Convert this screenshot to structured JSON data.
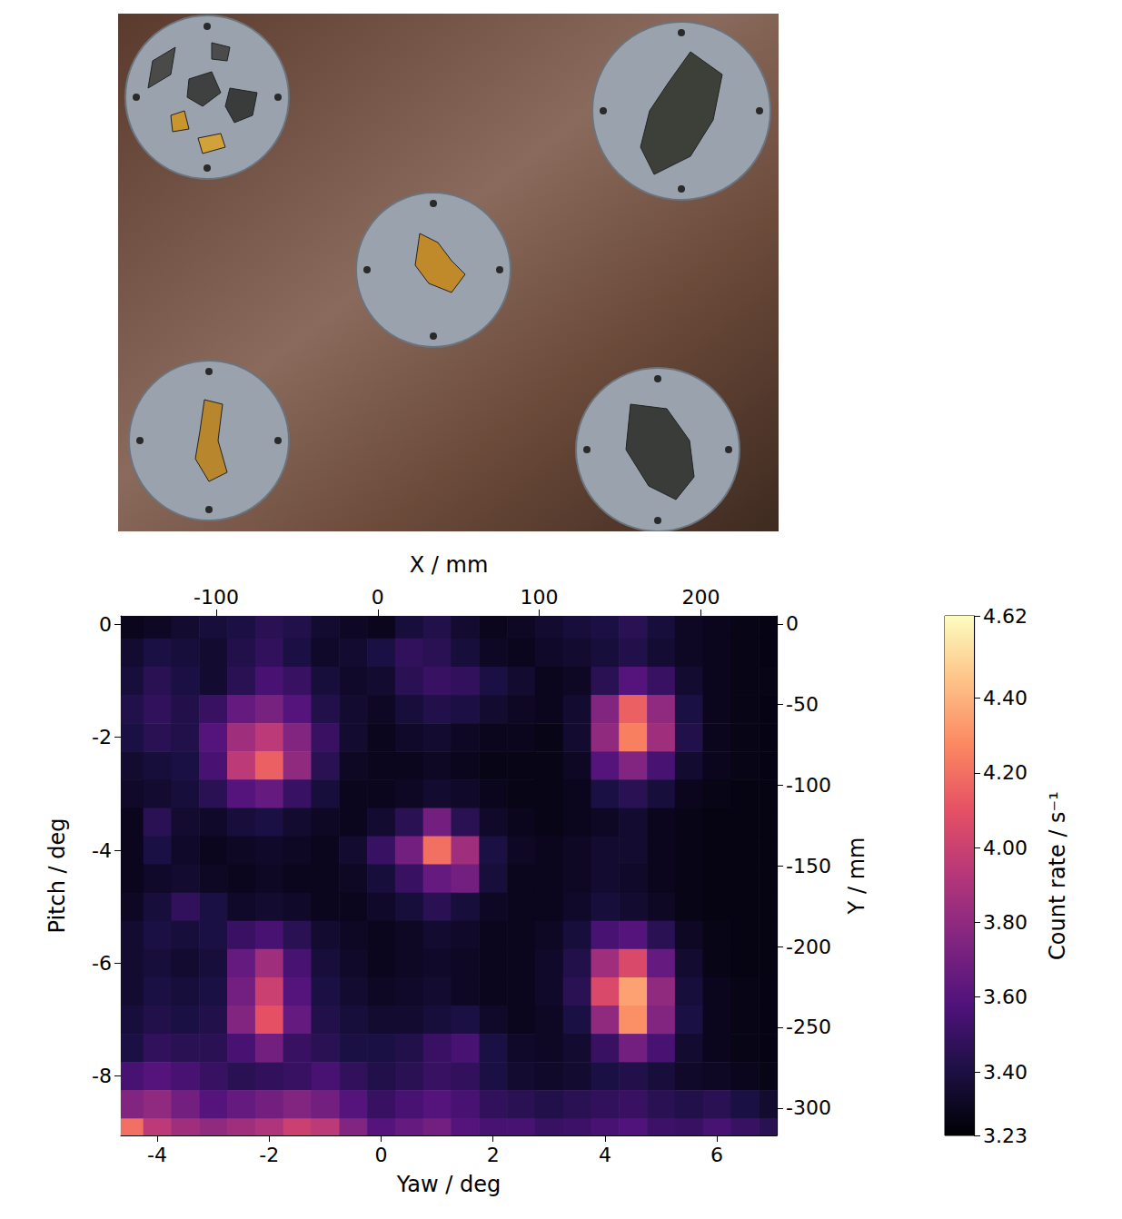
{
  "chart_data": {
    "type": "heatmap",
    "x_label": "Yaw / deg",
    "y_label": "Pitch / deg",
    "x2_label": "X / mm",
    "y2_label": "Y / mm",
    "xlim": [
      -4.65,
      7.07
    ],
    "xticks": [
      -4,
      -2,
      0,
      2,
      4,
      6
    ],
    "ylim": [
      -9.05,
      0.15
    ],
    "yticks": [
      0,
      -2,
      -4,
      -6,
      -8
    ],
    "x2lim": [
      -159,
      247
    ],
    "x2ticks": [
      -100,
      0,
      100,
      200
    ],
    "y2lim": [
      -317,
      5
    ],
    "y2ticks": [
      0,
      -50,
      -100,
      -150,
      -200,
      -250,
      -300
    ],
    "cells": {
      "yaw_edges": [
        -4.75,
        -4.25,
        -3.75,
        -3.25,
        -2.75,
        -2.25,
        -1.75,
        -1.25,
        -0.75,
        -0.25,
        0.25,
        0.75,
        1.25,
        1.75,
        2.25,
        2.75,
        3.25,
        3.75,
        4.25,
        4.75,
        5.25,
        5.75,
        6.25,
        6.75,
        7.25
      ],
      "pitch_edges": [
        0.25,
        -0.25,
        -0.75,
        -1.25,
        -1.75,
        -2.25,
        -2.75,
        -3.25,
        -3.75,
        -4.25,
        -4.75,
        -5.25,
        -5.75,
        -6.25,
        -6.75,
        -7.25,
        -7.75,
        -8.25,
        -8.75,
        -9.25
      ],
      "values": [
        [
          3.3,
          3.32,
          3.35,
          3.38,
          3.4,
          3.45,
          3.42,
          3.35,
          3.32,
          3.3,
          3.38,
          3.42,
          3.35,
          3.3,
          3.32,
          3.35,
          3.38,
          3.4,
          3.45,
          3.38,
          3.32,
          3.3,
          3.28,
          3.27
        ],
        [
          3.35,
          3.4,
          3.38,
          3.35,
          3.42,
          3.48,
          3.4,
          3.33,
          3.35,
          3.4,
          3.48,
          3.45,
          3.38,
          3.32,
          3.3,
          3.33,
          3.35,
          3.38,
          3.42,
          3.36,
          3.32,
          3.3,
          3.28,
          3.27
        ],
        [
          3.38,
          3.45,
          3.4,
          3.35,
          3.45,
          3.55,
          3.5,
          3.38,
          3.33,
          3.35,
          3.45,
          3.5,
          3.48,
          3.4,
          3.35,
          3.3,
          3.32,
          3.45,
          3.6,
          3.5,
          3.35,
          3.3,
          3.28,
          3.28
        ],
        [
          3.42,
          3.48,
          3.42,
          3.5,
          3.65,
          3.72,
          3.6,
          3.42,
          3.35,
          3.32,
          3.38,
          3.42,
          3.4,
          3.35,
          3.32,
          3.3,
          3.35,
          3.75,
          4.15,
          3.8,
          3.4,
          3.3,
          3.28,
          3.27
        ],
        [
          3.4,
          3.45,
          3.42,
          3.6,
          3.85,
          3.95,
          3.75,
          3.5,
          3.35,
          3.3,
          3.33,
          3.35,
          3.32,
          3.3,
          3.3,
          3.28,
          3.35,
          3.8,
          4.25,
          3.85,
          3.42,
          3.3,
          3.28,
          3.27
        ],
        [
          3.35,
          3.38,
          3.4,
          3.55,
          3.95,
          4.15,
          3.8,
          3.45,
          3.32,
          3.3,
          3.3,
          3.32,
          3.3,
          3.28,
          3.28,
          3.28,
          3.32,
          3.6,
          3.75,
          3.55,
          3.35,
          3.3,
          3.28,
          3.27
        ],
        [
          3.33,
          3.35,
          3.38,
          3.45,
          3.6,
          3.65,
          3.5,
          3.38,
          3.3,
          3.3,
          3.32,
          3.35,
          3.33,
          3.3,
          3.28,
          3.28,
          3.3,
          3.4,
          3.45,
          3.38,
          3.3,
          3.28,
          3.27,
          3.27
        ],
        [
          3.3,
          3.45,
          3.35,
          3.33,
          3.38,
          3.4,
          3.35,
          3.32,
          3.3,
          3.35,
          3.45,
          3.7,
          3.45,
          3.33,
          3.3,
          3.28,
          3.3,
          3.32,
          3.35,
          3.3,
          3.28,
          3.27,
          3.27,
          3.27
        ],
        [
          3.3,
          3.4,
          3.33,
          3.3,
          3.32,
          3.33,
          3.32,
          3.3,
          3.35,
          3.5,
          3.7,
          4.2,
          3.85,
          3.4,
          3.32,
          3.3,
          3.32,
          3.35,
          3.35,
          3.3,
          3.28,
          3.27,
          3.27,
          3.27
        ],
        [
          3.3,
          3.33,
          3.35,
          3.32,
          3.3,
          3.32,
          3.3,
          3.3,
          3.32,
          3.38,
          3.5,
          3.65,
          3.7,
          3.38,
          3.3,
          3.3,
          3.32,
          3.35,
          3.33,
          3.3,
          3.28,
          3.27,
          3.27,
          3.27
        ],
        [
          3.32,
          3.38,
          3.48,
          3.4,
          3.33,
          3.35,
          3.33,
          3.3,
          3.3,
          3.33,
          3.38,
          3.45,
          3.38,
          3.32,
          3.3,
          3.3,
          3.33,
          3.38,
          3.35,
          3.32,
          3.28,
          3.27,
          3.27,
          3.27
        ],
        [
          3.35,
          3.4,
          3.38,
          3.4,
          3.5,
          3.55,
          3.45,
          3.35,
          3.32,
          3.3,
          3.32,
          3.35,
          3.33,
          3.3,
          3.3,
          3.32,
          3.38,
          3.55,
          3.6,
          3.45,
          3.32,
          3.28,
          3.27,
          3.27
        ],
        [
          3.35,
          3.38,
          3.35,
          3.38,
          3.65,
          3.85,
          3.55,
          3.38,
          3.33,
          3.3,
          3.32,
          3.33,
          3.32,
          3.3,
          3.3,
          3.33,
          3.42,
          3.85,
          4.05,
          3.65,
          3.35,
          3.28,
          3.27,
          3.27
        ],
        [
          3.35,
          3.4,
          3.38,
          3.4,
          3.7,
          4.0,
          3.6,
          3.4,
          3.35,
          3.32,
          3.33,
          3.35,
          3.32,
          3.3,
          3.3,
          3.33,
          3.45,
          4.05,
          4.35,
          3.8,
          3.38,
          3.3,
          3.28,
          3.27
        ],
        [
          3.38,
          3.42,
          3.4,
          3.42,
          3.75,
          4.1,
          3.65,
          3.42,
          3.38,
          3.35,
          3.35,
          3.38,
          3.4,
          3.33,
          3.3,
          3.32,
          3.4,
          3.8,
          4.3,
          3.75,
          3.4,
          3.3,
          3.28,
          3.27
        ],
        [
          3.4,
          3.48,
          3.45,
          3.45,
          3.55,
          3.7,
          3.5,
          3.45,
          3.4,
          3.4,
          3.42,
          3.5,
          3.55,
          3.4,
          3.33,
          3.32,
          3.35,
          3.5,
          3.7,
          3.55,
          3.35,
          3.3,
          3.28,
          3.27
        ],
        [
          3.55,
          3.6,
          3.55,
          3.5,
          3.45,
          3.48,
          3.5,
          3.55,
          3.48,
          3.42,
          3.45,
          3.5,
          3.48,
          3.4,
          3.35,
          3.33,
          3.35,
          3.4,
          3.42,
          3.38,
          3.33,
          3.32,
          3.3,
          3.28
        ],
        [
          3.75,
          3.8,
          3.7,
          3.6,
          3.65,
          3.7,
          3.75,
          3.7,
          3.6,
          3.5,
          3.55,
          3.6,
          3.55,
          3.48,
          3.45,
          3.42,
          3.45,
          3.48,
          3.5,
          3.45,
          3.42,
          3.45,
          3.4,
          3.35
        ],
        [
          4.2,
          3.95,
          3.85,
          3.8,
          3.85,
          3.9,
          4.0,
          3.95,
          3.75,
          3.6,
          3.65,
          3.7,
          3.6,
          3.55,
          3.55,
          3.5,
          3.52,
          3.55,
          3.58,
          3.52,
          3.5,
          3.55,
          3.5,
          3.45
        ]
      ]
    },
    "colorbar": {
      "label": "Count rate / s⁻¹",
      "range": [
        3.23,
        4.62
      ],
      "ticks": [
        3.23,
        {
          "value": 3.4,
          "label": "3.40"
        },
        {
          "value": 3.6,
          "label": "3.60"
        },
        {
          "value": 3.8,
          "label": "3.80"
        },
        {
          "value": 4.0,
          "label": "4.00"
        },
        {
          "value": 4.2,
          "label": "4.20"
        },
        {
          "value": 4.4,
          "label": "4.40"
        },
        4.62
      ],
      "colors": [
        "#000004",
        "#1c1044",
        "#4f127b",
        "#812581",
        "#b5367a",
        "#e55064",
        "#fb8761",
        "#fec287",
        "#fcfdbf"
      ]
    }
  }
}
